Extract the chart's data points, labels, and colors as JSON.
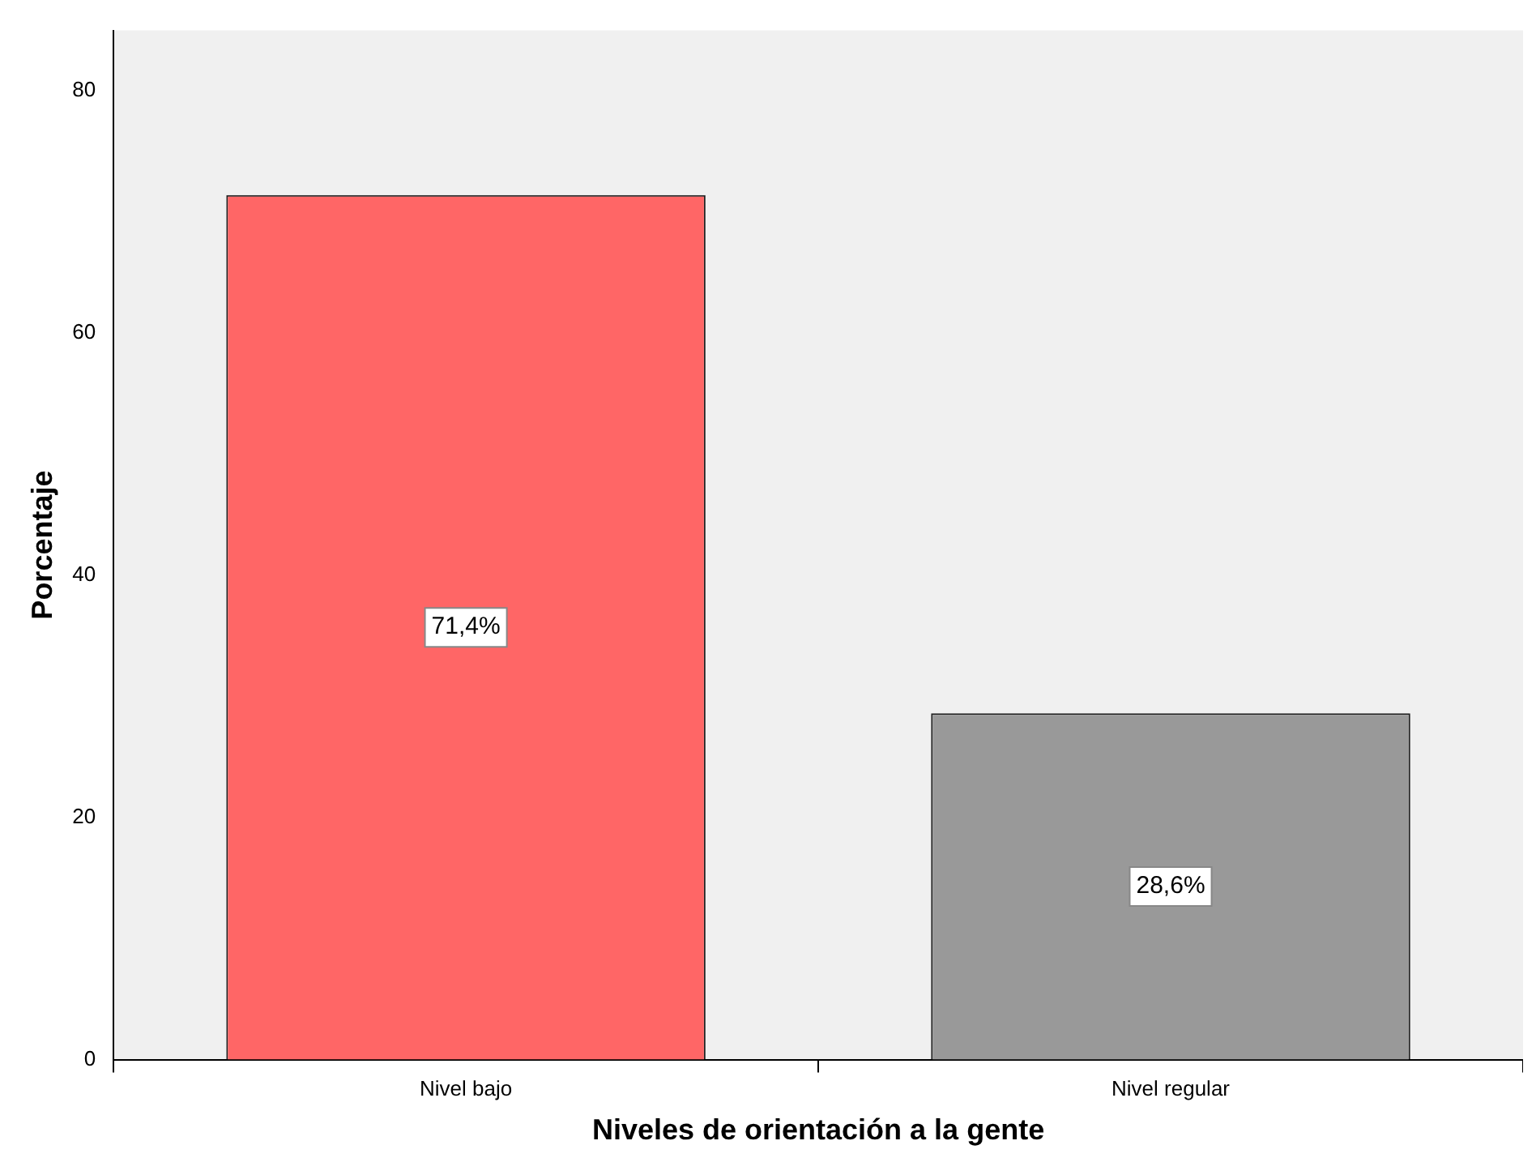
{
  "chart_data": {
    "type": "bar",
    "xlabel": "Niveles de orientación a la gente",
    "ylabel": "Porcentaje",
    "categories": [
      "Nivel bajo",
      "Nivel regular"
    ],
    "values": [
      71.4,
      28.6
    ],
    "value_labels": [
      "71,4%",
      "28,6%"
    ],
    "colors": [
      "#ff6666",
      "#999999"
    ],
    "ylim": [
      0,
      85
    ],
    "yticks": [
      0,
      20,
      40,
      60,
      80
    ],
    "grid": false,
    "legend": false
  }
}
